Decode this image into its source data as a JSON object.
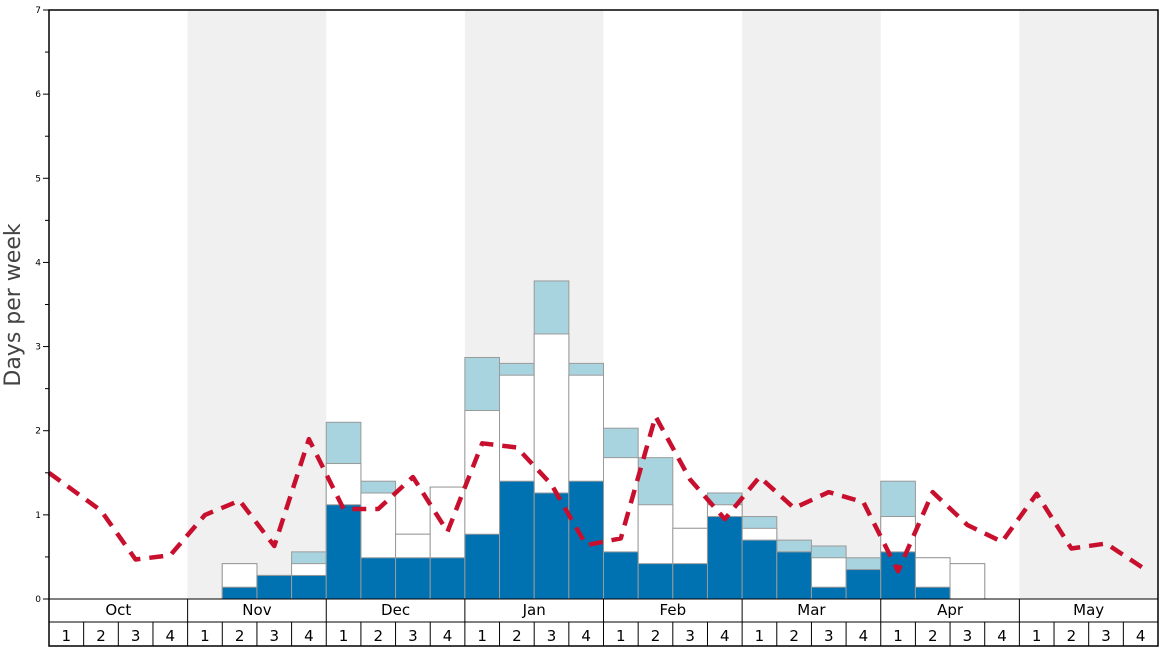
{
  "chart_data": {
    "type": "bar",
    "ylabel": "Days per week",
    "ylim": [
      0,
      7
    ],
    "yticks": [
      "0",
      "1",
      "2",
      "3",
      "4",
      "5",
      "6",
      "7"
    ],
    "months": [
      "Oct",
      "Nov",
      "Dec",
      "Jan",
      "Feb",
      "Mar",
      "Apr",
      "May"
    ],
    "week_labels": [
      "1",
      "2",
      "3",
      "4"
    ],
    "colors": {
      "dark_bar": "#0072b2",
      "mid_bar": "#ffffff",
      "light_bar": "#a8d4e0",
      "bar_edge": "#9a9a9a",
      "line": "#c8102e",
      "shade": "#f0f0f0"
    },
    "series": [
      {
        "values": [
          0,
          0,
          0,
          0,
          0,
          0.14,
          0.28,
          0.28,
          1.12,
          0.49,
          0.49,
          0.49,
          0.77,
          1.4,
          1.26,
          1.4,
          0.56,
          0.42,
          0.42,
          0.98,
          0.7,
          0.56,
          0.14,
          0.35,
          0.56,
          0.14,
          0,
          0,
          0,
          0,
          0,
          0
        ]
      },
      {
        "values": [
          0,
          0,
          0,
          0,
          0,
          0.42,
          0.28,
          0.42,
          1.61,
          1.26,
          0.77,
          1.33,
          2.24,
          2.66,
          3.15,
          2.66,
          1.68,
          1.12,
          0.84,
          1.12,
          0.84,
          0.56,
          0.49,
          0.35,
          0.98,
          0.49,
          0.42,
          0,
          0,
          0,
          0,
          0
        ]
      },
      {
        "values": [
          0,
          0,
          0,
          0,
          0,
          0.42,
          0.28,
          0.56,
          2.1,
          1.4,
          0.77,
          1.33,
          2.87,
          2.8,
          3.78,
          2.8,
          2.03,
          1.68,
          0.84,
          1.26,
          0.98,
          0.7,
          0.63,
          0.49,
          1.4,
          0.49,
          0.42,
          0,
          0,
          0,
          0,
          0
        ]
      },
      {
        "values": [
          1.5,
          1.05,
          0.47,
          0.52,
          1.0,
          1.17,
          0.63,
          1.9,
          1.07,
          1.07,
          1.45,
          0.8,
          1.85,
          1.8,
          1.36,
          0.64,
          0.72,
          2.17,
          1.42,
          0.95,
          1.45,
          1.08,
          1.27,
          1.15,
          0.33,
          1.27,
          0.88,
          0.68,
          1.25,
          0.6,
          0.66,
          0.33
        ]
      }
    ]
  }
}
